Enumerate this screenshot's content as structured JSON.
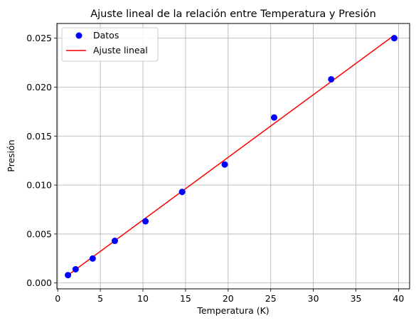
{
  "chart_data": {
    "type": "scatter",
    "title": "Ajuste lineal de la relación entre Temperatura y Presión",
    "xlabel": "Temperatura (K)",
    "ylabel": "Presión",
    "xlim": [
      -0.1,
      41.3
    ],
    "ylim": [
      -0.0006,
      0.0265
    ],
    "xticks": [
      0,
      5,
      10,
      15,
      20,
      25,
      30,
      35,
      40
    ],
    "xtick_labels": [
      "0",
      "5",
      "10",
      "15",
      "20",
      "25",
      "30",
      "35",
      "40"
    ],
    "yticks": [
      0.0,
      0.005,
      0.01,
      0.015,
      0.02,
      0.025
    ],
    "ytick_labels": [
      "0.000",
      "0.005",
      "0.010",
      "0.015",
      "0.020",
      "0.025"
    ],
    "grid": true,
    "legend_position": "top-left",
    "series": [
      {
        "name": "Datos",
        "kind": "scatter",
        "color": "#0000ff",
        "x": [
          1.2,
          2.1,
          4.1,
          6.7,
          10.3,
          14.6,
          19.6,
          25.4,
          32.1,
          39.5
        ],
        "y": [
          0.0008,
          0.0014,
          0.0025,
          0.0043,
          0.0063,
          0.0093,
          0.0121,
          0.0169,
          0.0208,
          0.025
        ]
      },
      {
        "name": "Ajuste lineal",
        "kind": "line",
        "color": "#ff0000",
        "x": [
          1.2,
          39.5
        ],
        "y": [
          0.0008,
          0.0253
        ]
      }
    ]
  }
}
